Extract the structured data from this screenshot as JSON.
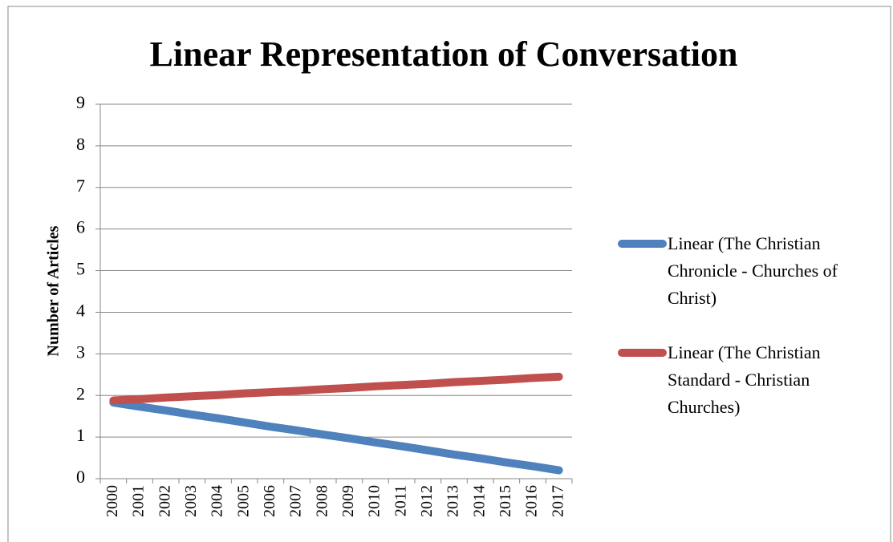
{
  "chart_data": {
    "type": "line",
    "title": "Linear Representation of Conversation",
    "y_label": "Number of Articles",
    "categories": [
      "2000",
      "2001",
      "2002",
      "2003",
      "2004",
      "2005",
      "2006",
      "2007",
      "2008",
      "2009",
      "2010",
      "2011",
      "2012",
      "2013",
      "2014",
      "2015",
      "2016",
      "2017"
    ],
    "series": [
      {
        "name": "Linear (The Christian Chronicle - Churches of Christ)",
        "color": "#4f81bd",
        "values": [
          1.83,
          1.73,
          1.64,
          1.54,
          1.45,
          1.35,
          1.25,
          1.16,
          1.06,
          0.97,
          0.87,
          0.78,
          0.68,
          0.58,
          0.49,
          0.39,
          0.3,
          0.2
        ]
      },
      {
        "name": "Linear (The Christian Standard - Christian Churches)",
        "color": "#c0504d",
        "values": [
          1.88,
          1.91,
          1.95,
          1.98,
          2.01,
          2.05,
          2.08,
          2.11,
          2.15,
          2.18,
          2.22,
          2.25,
          2.28,
          2.32,
          2.35,
          2.38,
          2.42,
          2.45
        ]
      }
    ],
    "ylim": [
      0,
      9
    ],
    "yticks": [
      0,
      1,
      2,
      3,
      4,
      5,
      6,
      7,
      8,
      9
    ],
    "grid": true,
    "legend": "right"
  }
}
